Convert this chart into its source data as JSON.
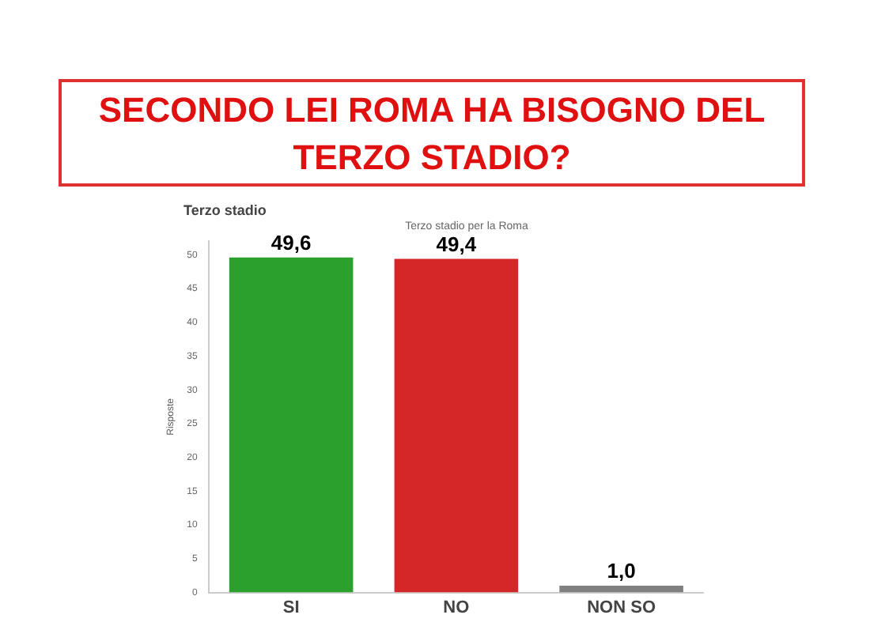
{
  "chart_data": {
    "type": "bar",
    "title": "SECONDO LEI ROMA HA BISOGNO DEL TERZO STADIO?",
    "subtitle": "Terzo stadio",
    "annotations": [
      "Terzo stadio per la Roma"
    ],
    "ylabel": "Risposte",
    "categories": [
      "SI",
      "NO",
      "NON SO"
    ],
    "values": [
      49.6,
      49.4,
      1.0
    ],
    "colors": [
      "#2ca02c",
      "#d62728",
      "#808080"
    ],
    "value_labels": [
      "49,6",
      "49,4",
      "1,0"
    ],
    "ylim": [
      0,
      52
    ],
    "yticks": [
      0,
      5,
      10,
      15,
      20,
      25,
      30,
      35,
      40,
      45,
      50
    ],
    "grid": false,
    "legend": false
  }
}
